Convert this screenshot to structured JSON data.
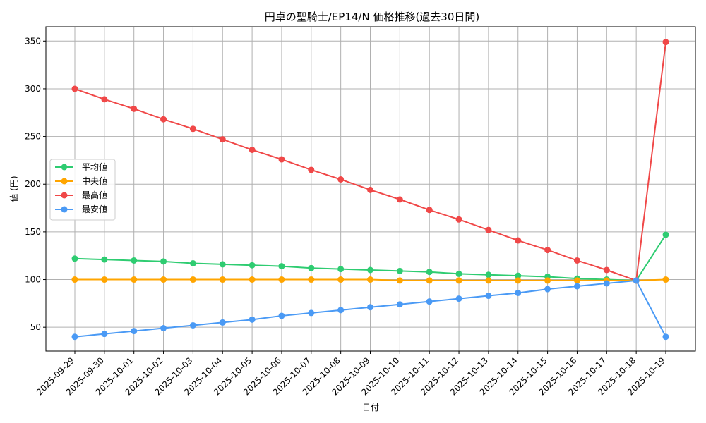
{
  "chart_data": {
    "type": "line",
    "title": "円卓の聖騎士/EP14/N 価格推移(過去30日間)",
    "xlabel": "日付",
    "ylabel": "値 (円)",
    "categories": [
      "2025-09-29",
      "2025-09-30",
      "2025-10-01",
      "2025-10-02",
      "2025-10-03",
      "2025-10-04",
      "2025-10-05",
      "2025-10-06",
      "2025-10-07",
      "2025-10-08",
      "2025-10-09",
      "2025-10-10",
      "2025-10-11",
      "2025-10-12",
      "2025-10-13",
      "2025-10-14",
      "2025-10-15",
      "2025-10-16",
      "2025-10-17",
      "2025-10-18",
      "2025-10-19"
    ],
    "yticks": [
      50,
      100,
      150,
      200,
      250,
      300,
      350
    ],
    "ylim": [
      25,
      365
    ],
    "grid": true,
    "legend_position": "center-left",
    "series": [
      {
        "name": "平均値",
        "color": "#2ecc71",
        "values": [
          122,
          121,
          120,
          119,
          117,
          116,
          115,
          114,
          112,
          111,
          110,
          109,
          108,
          106,
          105,
          104,
          103,
          101,
          100,
          99,
          147
        ]
      },
      {
        "name": "中央値",
        "color": "#ffa500",
        "values": [
          100,
          100,
          100,
          100,
          100,
          100,
          100,
          100,
          100,
          100,
          100,
          99,
          99,
          99,
          99,
          99,
          99,
          99,
          99,
          99,
          100
        ]
      },
      {
        "name": "最高値",
        "color": "#f04848",
        "values": [
          300,
          289,
          279,
          268,
          258,
          247,
          236,
          226,
          215,
          205,
          194,
          184,
          173,
          163,
          152,
          141,
          131,
          120,
          110,
          99,
          349
        ]
      },
      {
        "name": "最安値",
        "color": "#4a9af5",
        "values": [
          40,
          43,
          46,
          49,
          52,
          55,
          58,
          62,
          65,
          68,
          71,
          74,
          77,
          80,
          83,
          86,
          90,
          93,
          96,
          99,
          40
        ]
      }
    ]
  }
}
